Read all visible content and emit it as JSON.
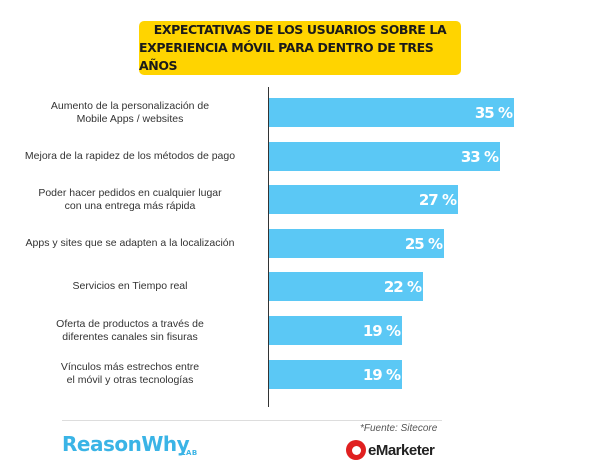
{
  "header": {
    "title_line1": "EXPECTATIVAS DE LOS USUARIOS SOBRE LA",
    "title_line2": "EXPERIENCIA  MÓVIL PARA DENTRO DE TRES AÑOS"
  },
  "chart_data": {
    "type": "bar",
    "orientation": "horizontal",
    "title": "EXPECTATIVAS DE LOS USUARIOS SOBRE LA EXPERIENCIA  MÓVIL PARA DENTRO DE TRES AÑOS",
    "categories": [
      [
        "Aumento de la personalización de",
        "Mobile Apps / websites"
      ],
      [
        "Mejora de la rapidez de los métodos de pago"
      ],
      [
        "Poder hacer pedidos en cualquier lugar",
        "con una entrega más rápida"
      ],
      [
        "Apps y sites que se adapten a la localización"
      ],
      [
        "Servicios en Tiempo real"
      ],
      [
        "Oferta de productos a través de",
        "diferentes canales sin fisuras"
      ],
      [
        "Vínculos más estrechos entre",
        "el móvil y otras tecnologías"
      ]
    ],
    "values": [
      35,
      33,
      27,
      25,
      22,
      19,
      19
    ],
    "value_labels": [
      "35 %",
      "33 %",
      "27 %",
      "25 %",
      "22 %",
      "19 %",
      "19 %"
    ],
    "unit": "%",
    "bar_color": "#5bc8f5",
    "xlim": [
      0,
      35
    ],
    "grid": false,
    "legend": "none"
  },
  "footer": {
    "source": "*Fuente: Sitecore",
    "logo_left": "ReasonWhy",
    "logo_left_sub": "LAB",
    "logo_right": "eMarketer",
    "logo_left_color": "#3ab4e6",
    "logo_right_color": "#e02020"
  },
  "colors": {
    "title_bg": "#ffd400",
    "bar": "#5bc8f5"
  }
}
